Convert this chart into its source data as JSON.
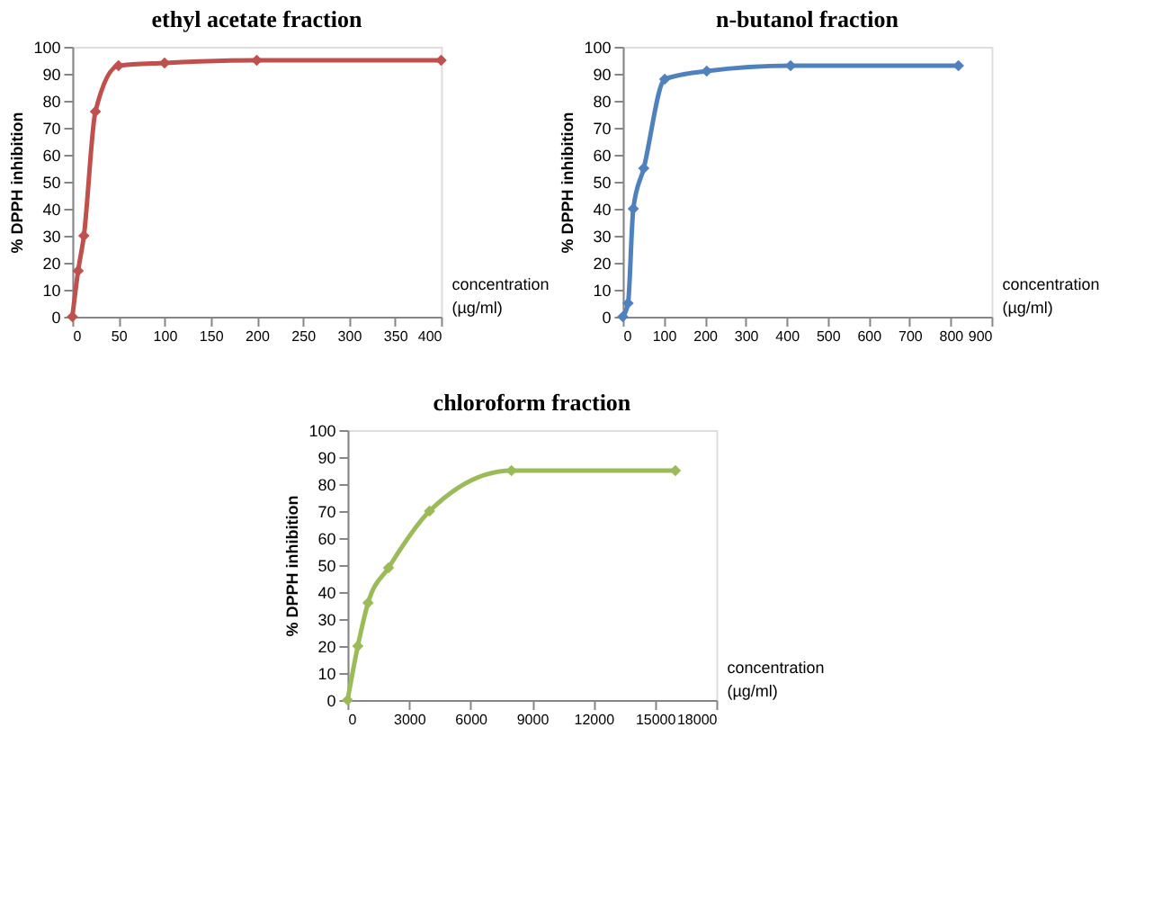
{
  "chart_data": [
    {
      "type": "line",
      "title": "ethyl acetate fraction",
      "xlabel": "concentration (µg/ml)",
      "ylabel": "% DPPH inhibition",
      "x": [
        0,
        6.25,
        12.5,
        25,
        50,
        100,
        200,
        400
      ],
      "series": [
        {
          "color": "#c0504d",
          "values": [
            0,
            17,
            30,
            76,
            93,
            94,
            95,
            95
          ]
        }
      ],
      "xlim": [
        0,
        400
      ],
      "xticks": [
        0,
        50,
        100,
        150,
        200,
        250,
        300,
        350,
        400
      ],
      "ylim": [
        0,
        100
      ],
      "yticks": [
        0,
        10,
        20,
        30,
        40,
        50,
        60,
        70,
        80,
        90,
        100
      ],
      "marker": "diamond",
      "grid": false
    },
    {
      "type": "line",
      "title": "n-butanol fraction",
      "xlabel": "concentration (µg/ml)",
      "ylabel": "% DPPH inhibition",
      "x": [
        0,
        12.8,
        25.6,
        51.2,
        102.4,
        204.8,
        409.6,
        819.2
      ],
      "series": [
        {
          "color": "#4f81bd",
          "values": [
            0,
            5,
            40,
            55,
            88,
            91,
            93,
            93
          ]
        }
      ],
      "xlim": [
        0,
        900
      ],
      "xticks": [
        0,
        100,
        200,
        300,
        400,
        500,
        600,
        700,
        800,
        900
      ],
      "ylim": [
        0,
        100
      ],
      "yticks": [
        0,
        10,
        20,
        30,
        40,
        50,
        60,
        70,
        80,
        90,
        100
      ],
      "marker": "diamond",
      "grid": false
    },
    {
      "type": "line",
      "title": "chloroform fraction",
      "xlabel": "concentration (µg/ml)",
      "ylabel": "% DPPH inhibition",
      "x": [
        0,
        500,
        1000,
        2000,
        4000,
        8000,
        16000
      ],
      "series": [
        {
          "color": "#9bbb59",
          "values": [
            0,
            20,
            36,
            49,
            70,
            85,
            85
          ]
        }
      ],
      "xlim": [
        0,
        18000
      ],
      "xticks": [
        0,
        3000,
        6000,
        9000,
        12000,
        15000,
        18000
      ],
      "ylim": [
        0,
        100
      ],
      "yticks": [
        0,
        10,
        20,
        30,
        40,
        50,
        60,
        70,
        80,
        90,
        100
      ],
      "marker": "diamond",
      "grid": false
    }
  ]
}
